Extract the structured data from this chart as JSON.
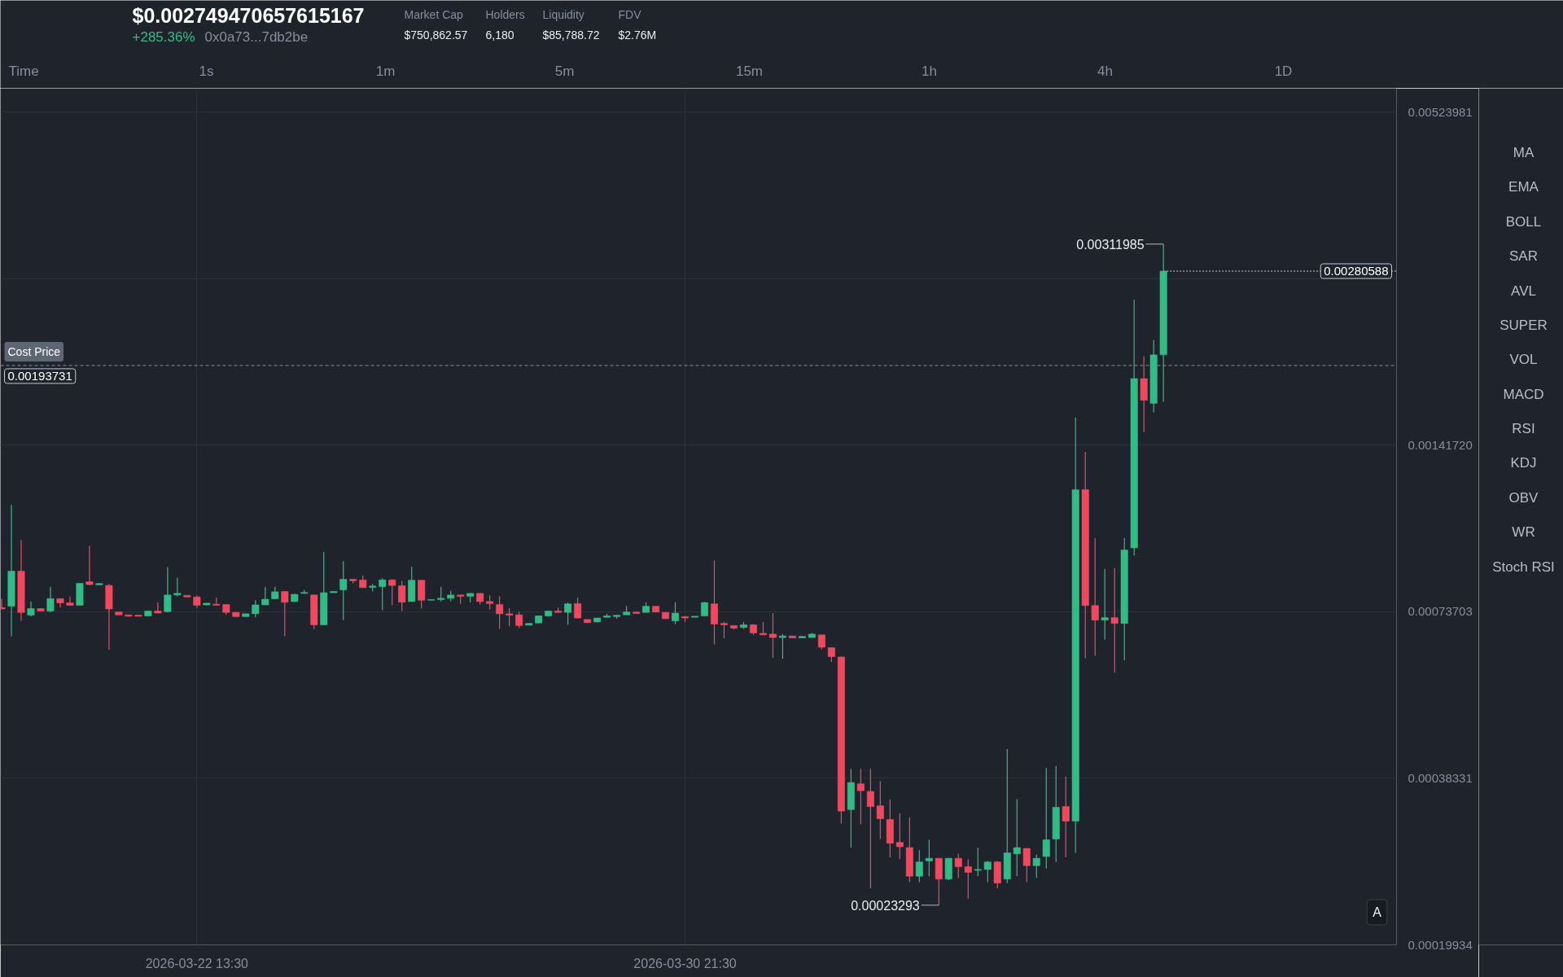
{
  "chart_data": {
    "type": "candlestick",
    "title": "$0.002749470657615167",
    "annotations": [
      "+285.36%",
      "0x0a73...7db2be",
      "Market Cap",
      "$750,862.57",
      "Holders",
      "6,180",
      "Liquidity",
      "$85,788.72",
      "FDV",
      "$2.76M",
      "Time",
      "1s",
      "1m",
      "5m",
      "15m",
      "1h",
      "4h",
      "1D",
      "MA",
      "EMA",
      "BOLL",
      "SAR",
      "AVL",
      "SUPER",
      "VOL",
      "MACD",
      "RSI",
      "KDJ",
      "OBV",
      "WR",
      "Stoch RSI",
      "A",
      {
        "text": "0.00311985",
        "x": "2026-04-08T01:30",
        "y": 0.00311985
      },
      {
        "text": "0.00023293",
        "x": "2026-04-04T05:30",
        "y": 0.00023293
      },
      {
        "text": "0.00193731",
        "y": 0.00193731
      },
      {
        "text": "0.00280588",
        "y": 0.00280588
      }
    ],
    "x": [
      "2026-03-19T05:30",
      "2026-03-19T09:30",
      "2026-03-19T13:30",
      "2026-03-19T17:30",
      "2026-03-19T21:30",
      "2026-03-20T01:30",
      "2026-03-20T05:30",
      "2026-03-20T09:30",
      "2026-03-20T13:30",
      "2026-03-20T17:30",
      "2026-03-20T21:30",
      "2026-03-21T01:30",
      "2026-03-21T05:30",
      "2026-03-21T09:30",
      "2026-03-21T13:30",
      "2026-03-21T17:30",
      "2026-03-21T21:30",
      "2026-03-22T01:30",
      "2026-03-22T05:30",
      "2026-03-22T09:30",
      "2026-03-22T13:30",
      "2026-03-22T17:30",
      "2026-03-22T21:30",
      "2026-03-23T01:30",
      "2026-03-23T05:30",
      "2026-03-23T09:30",
      "2026-03-23T13:30",
      "2026-03-23T17:30",
      "2026-03-23T21:30",
      "2026-03-24T01:30",
      "2026-03-24T05:30",
      "2026-03-24T09:30",
      "2026-03-24T13:30",
      "2026-03-24T17:30",
      "2026-03-24T21:30",
      "2026-03-25T01:30",
      "2026-03-25T05:30",
      "2026-03-25T09:30",
      "2026-03-25T13:30",
      "2026-03-25T17:30",
      "2026-03-25T21:30",
      "2026-03-26T01:30",
      "2026-03-26T05:30",
      "2026-03-26T09:30",
      "2026-03-26T13:30",
      "2026-03-26T17:30",
      "2026-03-26T21:30",
      "2026-03-27T01:30",
      "2026-03-27T05:30",
      "2026-03-27T09:30",
      "2026-03-27T13:30",
      "2026-03-27T17:30",
      "2026-03-27T21:30",
      "2026-03-28T01:30",
      "2026-03-28T05:30",
      "2026-03-28T09:30",
      "2026-03-28T13:30",
      "2026-03-28T17:30",
      "2026-03-28T21:30",
      "2026-03-29T01:30",
      "2026-03-29T05:30",
      "2026-03-29T09:30",
      "2026-03-29T13:30",
      "2026-03-29T17:30",
      "2026-03-29T21:30",
      "2026-03-30T01:30",
      "2026-03-30T05:30",
      "2026-03-30T09:30",
      "2026-03-30T13:30",
      "2026-03-30T17:30",
      "2026-03-30T21:30",
      "2026-03-31T01:30",
      "2026-03-31T05:30",
      "2026-03-31T09:30",
      "2026-03-31T13:30",
      "2026-03-31T17:30",
      "2026-03-31T21:30",
      "2026-04-01T01:30",
      "2026-04-01T05:30",
      "2026-04-01T09:30",
      "2026-04-01T13:30",
      "2026-04-01T17:30",
      "2026-04-01T21:30",
      "2026-04-02T01:30",
      "2026-04-02T05:30",
      "2026-04-02T09:30",
      "2026-04-02T13:30",
      "2026-04-02T17:30",
      "2026-04-02T21:30",
      "2026-04-03T01:30",
      "2026-04-03T05:30",
      "2026-04-03T09:30",
      "2026-04-03T13:30",
      "2026-04-03T17:30",
      "2026-04-03T21:30",
      "2026-04-04T01:30",
      "2026-04-04T05:30",
      "2026-04-04T09:30",
      "2026-04-04T13:30",
      "2026-04-04T17:30",
      "2026-04-04T21:30",
      "2026-04-05T01:30",
      "2026-04-05T05:30",
      "2026-04-05T09:30",
      "2026-04-05T13:30",
      "2026-04-05T17:30",
      "2026-04-05T21:30",
      "2026-04-06T01:30",
      "2026-04-06T05:30",
      "2026-04-06T09:30",
      "2026-04-06T13:30",
      "2026-04-06T17:30",
      "2026-04-06T21:30",
      "2026-04-07T01:30",
      "2026-04-07T05:30",
      "2026-04-07T09:30",
      "2026-04-07T13:30",
      "2026-04-07T17:30",
      "2026-04-07T21:30",
      "2026-04-08T01:30"
    ],
    "ohlc": [
      [
        0.000749,
        0.000775,
        0.000745,
        0.000745
      ],
      [
        0.000753,
        0.001121,
        0.000669,
        0.000864
      ],
      [
        0.000864,
        0.000977,
        0.000711,
        0.000735
      ],
      [
        0.000727,
        0.000767,
        0.000723,
        0.000746
      ],
      [
        0.000746,
        0.000747,
        0.000738,
        0.000739
      ],
      [
        0.000739,
        0.000813,
        0.000735,
        0.000776
      ],
      [
        0.000776,
        0.000776,
        0.000749,
        0.000763
      ],
      [
        0.000763,
        0.000783,
        0.000756,
        0.000756
      ],
      [
        0.000756,
        0.000824,
        0.000756,
        0.000824
      ],
      [
        0.000829,
        0.000954,
        0.000817,
        0.00082
      ],
      [
        0.000819,
        0.000825,
        0.000819,
        0.000823
      ],
      [
        0.000817,
        0.000822,
        0.000635,
        0.000745
      ],
      [
        0.000736,
        0.000736,
        0.000727,
        0.000728
      ],
      [
        0.000728,
        0.000728,
        0.000723,
        0.000724
      ],
      [
        0.000727,
        0.000727,
        0.000724,
        0.000724
      ],
      [
        0.000725,
        0.00074,
        0.000724,
        0.000739
      ],
      [
        0.000739,
        0.000765,
        0.000733,
        0.000733
      ],
      [
        0.000737,
        0.000878,
        0.000735,
        0.000787
      ],
      [
        0.000787,
        0.000842,
        0.000783,
        0.000792
      ],
      [
        0.000786,
        0.000786,
        0.000781,
        0.000781
      ],
      [
        0.000781,
        0.000786,
        0.000748,
        0.000756
      ],
      [
        0.000757,
        0.000763,
        0.000756,
        0.000762
      ],
      [
        0.000759,
        0.000779,
        0.000754,
        0.000756
      ],
      [
        0.000758,
        0.000758,
        0.000728,
        0.000735
      ],
      [
        0.000735,
        0.000735,
        0.000722,
        0.000723
      ],
      [
        0.000723,
        0.000731,
        0.000723,
        0.000731
      ],
      [
        0.000731,
        0.000771,
        0.000721,
        0.000757
      ],
      [
        0.000757,
        0.000813,
        0.000757,
        0.000774
      ],
      [
        0.000775,
        0.000813,
        0.000774,
        0.000797
      ],
      [
        0.000798,
        0.000798,
        0.00067,
        0.000765
      ],
      [
        0.000767,
        0.00079,
        0.000766,
        0.000789
      ],
      [
        0.000792,
        0.000803,
        0.000791,
        0.000795
      ],
      [
        0.000787,
        0.000789,
        0.000688,
        0.0007
      ],
      [
        0.0007,
        0.000932,
        0.0007,
        0.000794
      ],
      [
        0.000794,
        0.000798,
        0.000794,
        0.000798
      ],
      [
        0.000803,
        0.000899,
        0.000713,
        0.000837
      ],
      [
        0.000837,
        0.000837,
        0.000824,
        0.000832
      ],
      [
        0.000835,
        0.00085,
        0.00081,
        0.00081
      ],
      [
        0.000811,
        0.000822,
        0.000798,
        0.000815
      ],
      [
        0.000813,
        0.000841,
        0.000742,
        0.000835
      ],
      [
        0.000835,
        0.000837,
        0.000756,
        0.000817
      ],
      [
        0.000816,
        0.000832,
        0.000739,
        0.000765
      ],
      [
        0.000767,
        0.000879,
        0.000767,
        0.000834
      ],
      [
        0.000834,
        0.000834,
        0.000746,
        0.000771
      ],
      [
        0.000771,
        0.000773,
        0.000771,
        0.000773
      ],
      [
        0.000773,
        0.000813,
        0.000767,
        0.000777
      ],
      [
        0.000777,
        0.0008,
        0.000768,
        0.000787
      ],
      [
        0.000787,
        0.000787,
        0.00076,
        0.000783
      ],
      [
        0.000783,
        0.000792,
        0.000765,
        0.000792
      ],
      [
        0.000792,
        0.000792,
        0.000758,
        0.000767
      ],
      [
        0.000767,
        0.000786,
        0.000744,
        0.000761
      ],
      [
        0.000758,
        0.000783,
        0.000689,
        0.000731
      ],
      [
        0.000731,
        0.000748,
        0.000696,
        0.000727
      ],
      [
        0.000728,
        0.000737,
        0.000691,
        0.000698
      ],
      [
        0.000699,
        0.000704,
        0.000699,
        0.000704
      ],
      [
        0.000705,
        0.000726,
        0.000705,
        0.000725
      ],
      [
        0.000725,
        0.000739,
        0.000723,
        0.000739
      ],
      [
        0.000739,
        0.000749,
        0.000735,
        0.000735
      ],
      [
        0.000735,
        0.000764,
        0.0007,
        0.00076
      ],
      [
        0.000761,
        0.000779,
        0.000718,
        0.000719
      ],
      [
        0.000715,
        0.000715,
        0.000705,
        0.000706
      ],
      [
        0.000708,
        0.000719,
        0.000707,
        0.000719
      ],
      [
        0.000721,
        0.000731,
        0.000721,
        0.000725
      ],
      [
        0.000723,
        0.000728,
        0.000717,
        0.000727
      ],
      [
        0.000728,
        0.000754,
        0.000728,
        0.000736
      ],
      [
        0.000736,
        0.000736,
        0.000732,
        0.000732
      ],
      [
        0.000735,
        0.000765,
        0.000735,
        0.000753
      ],
      [
        0.000753,
        0.000753,
        0.000736,
        0.000736
      ],
      [
        0.000735,
        0.000735,
        0.000717,
        0.000717
      ],
      [
        0.000711,
        0.000765,
        0.000702,
        0.000733
      ],
      [
        0.000723,
        0.000725,
        0.000708,
        0.000719
      ],
      [
        0.000721,
        0.000724,
        0.000721,
        0.000724
      ],
      [
        0.000725,
        0.000766,
        0.000725,
        0.000764
      ],
      [
        0.00076,
        0.000901,
        0.000648,
        0.000702
      ],
      [
        0.000704,
        0.000708,
        0.000664,
        0.0007
      ],
      [
        0.000698,
        0.000698,
        0.000688,
        0.000691
      ],
      [
        0.000693,
        0.000708,
        0.000689,
        0.0007
      ],
      [
        0.0007,
        0.000702,
        0.000673,
        0.000678
      ],
      [
        0.000677,
        0.000708,
        0.000673,
        0.000673
      ],
      [
        0.000675,
        0.000733,
        0.000615,
        0.000666
      ],
      [
        0.000666,
        0.000675,
        0.000613,
        0.00067
      ],
      [
        0.00067,
        0.00067,
        0.000665,
        0.000665
      ],
      [
        0.000665,
        0.00067,
        0.000665,
        0.000669
      ],
      [
        0.000666,
        0.000678,
        0.000666,
        0.000675
      ],
      [
        0.000673,
        0.000673,
        0.000636,
        0.000641
      ],
      [
        0.00064,
        0.00064,
        0.000605,
        0.000618
      ],
      [
        0.000617,
        0.000618,
        0.000321,
        0.000337
      ],
      [
        0.000339,
        0.000398,
        0.000292,
        0.000377
      ],
      [
        0.000375,
        0.000398,
        0.00032,
        0.000365
      ],
      [
        0.000364,
        0.000398,
        0.000249,
        0.000343
      ],
      [
        0.000344,
        0.000379,
        0.000302,
        0.000327
      ],
      [
        0.000326,
        0.000353,
        0.000281,
        0.000297
      ],
      [
        0.000298,
        0.000334,
        0.000279,
        0.000293
      ],
      [
        0.000292,
        0.000329,
        0.000255,
        0.000261
      ],
      [
        0.000261,
        0.000289,
        0.000255,
        0.000276
      ],
      [
        0.000277,
        0.000301,
        0.000261,
        0.00028
      ],
      [
        0.00028,
        0.00028,
        0.00023293,
        0.000258
      ],
      [
        0.000258,
        0.00028,
        0.000257,
        0.00028
      ],
      [
        0.00028,
        0.000285,
        0.000259,
        0.000271
      ],
      [
        0.000271,
        0.000279,
        0.000239,
        0.000265
      ],
      [
        0.000267,
        0.000292,
        0.000261,
        0.000268
      ],
      [
        0.000268,
        0.000277,
        0.000255,
        0.000276
      ],
      [
        0.000276,
        0.000277,
        0.000249,
        0.000254
      ],
      [
        0.000258,
        0.00043,
        0.000254,
        0.000286
      ],
      [
        0.000285,
        0.000353,
        0.000261,
        0.000292
      ],
      [
        0.000291,
        0.000291,
        0.000255,
        0.000272
      ],
      [
        0.000272,
        0.000284,
        0.000259,
        0.00028
      ],
      [
        0.000282,
        0.000399,
        0.000269,
        0.000301
      ],
      [
        0.000302,
        0.000402,
        0.000276,
        0.000342
      ],
      [
        0.000343,
        0.000386,
        0.000281,
        0.000324
      ],
      [
        0.000324,
        0.00158,
        0.000286,
        0.00119
      ],
      [
        0.00119,
        0.00138,
        0.000614,
        0.000755
      ],
      [
        0.000755,
        0.000984,
        0.00062,
        0.000713
      ],
      [
        0.000713,
        0.000872,
        0.000661,
        0.00072
      ],
      [
        0.00072,
        0.000875,
        0.00058,
        0.000704
      ],
      [
        0.000704,
        0.000984,
        0.000609,
        0.000939
      ],
      [
        0.000947,
        0.00251,
        0.000919,
        0.00184
      ],
      [
        0.00184,
        0.00201,
        0.00149,
        0.00169
      ],
      [
        0.00167,
        0.00214,
        0.00161,
        0.00202
      ],
      [
        0.00202,
        0.00311985,
        0.00168,
        0.00280588
      ]
    ],
    "colors": [
      "#f6465d",
      "#2ebd85",
      "#f6465d",
      "#2ebd85",
      "#f6465d",
      "#2ebd85",
      "#f6465d",
      "#f6465d",
      "#2ebd85",
      "#f6465d",
      "#2ebd85",
      "#f6465d",
      "#f6465d",
      "#f6465d",
      "#f6465d",
      "#2ebd85",
      "#f6465d",
      "#2ebd85",
      "#2ebd85",
      "#f6465d",
      "#f6465d",
      "#2ebd85",
      "#f6465d",
      "#f6465d",
      "#f6465d",
      "#2ebd85",
      "#2ebd85",
      "#2ebd85",
      "#2ebd85",
      "#f6465d",
      "#2ebd85",
      "#2ebd85",
      "#f6465d",
      "#2ebd85",
      "#2ebd85",
      "#2ebd85",
      "#f6465d",
      "#f6465d",
      "#2ebd85",
      "#2ebd85",
      "#f6465d",
      "#f6465d",
      "#2ebd85",
      "#f6465d",
      "#2ebd85",
      "#2ebd85",
      "#2ebd85",
      "#f6465d",
      "#2ebd85",
      "#f6465d",
      "#f6465d",
      "#f6465d",
      "#f6465d",
      "#f6465d",
      "#2ebd85",
      "#2ebd85",
      "#2ebd85",
      "#f6465d",
      "#2ebd85",
      "#f6465d",
      "#f6465d",
      "#2ebd85",
      "#2ebd85",
      "#2ebd85",
      "#2ebd85",
      "#f6465d",
      "#2ebd85",
      "#f6465d",
      "#f6465d",
      "#2ebd85",
      "#f6465d",
      "#2ebd85",
      "#2ebd85",
      "#f6465d",
      "#f6465d",
      "#f6465d",
      "#2ebd85",
      "#f6465d",
      "#f6465d",
      "#f6465d",
      "#2ebd85",
      "#f6465d",
      "#2ebd85",
      "#2ebd85",
      "#f6465d",
      "#f6465d",
      "#f6465d",
      "#2ebd85",
      "#f6465d",
      "#f6465d",
      "#f6465d",
      "#f6465d",
      "#f6465d",
      "#f6465d",
      "#2ebd85",
      "#2ebd85",
      "#f6465d",
      "#2ebd85",
      "#f6465d",
      "#f6465d",
      "#2ebd85",
      "#2ebd85",
      "#f6465d",
      "#2ebd85",
      "#2ebd85",
      "#f6465d",
      "#2ebd85",
      "#2ebd85",
      "#2ebd85",
      "#f6465d",
      "#2ebd85",
      "#f6465d",
      "#f6465d",
      "#2ebd85",
      "#f6465d",
      "#2ebd85",
      "#2ebd85",
      "#f6465d",
      "#2ebd85",
      "#2ebd85"
    ],
    "xlim": [
      "2026-03-19T05:00",
      "2026-04-12T01:00"
    ],
    "xticks": [
      {
        "value": "2026-03-22T13:30",
        "label": "2026-03-22 13:30"
      },
      {
        "value": "2026-03-30T21:30",
        "label": "2026-03-30 21:30"
      }
    ],
    "ylim": [
      0.00019934,
      0.00575
    ],
    "yticks": [
      0.00019934,
      0.00038331,
      0.00073703,
      {
        "value": 0.0014172,
        "label": "0.00141720"
      },
      {
        "value": 0.00272505,
        "label": null
      },
      0.00523981
    ],
    "log": "y",
    "grid": true,
    "ref_lines": [
      {
        "axis": "y",
        "value": 0.00193731,
        "label": "Cost Price",
        "color": "#8a909a",
        "line_style": "dashed"
      },
      {
        "axis": "y",
        "value": 0.00280588,
        "color": "#c4c8ce",
        "line_style": "dotted"
      }
    ]
  }
}
